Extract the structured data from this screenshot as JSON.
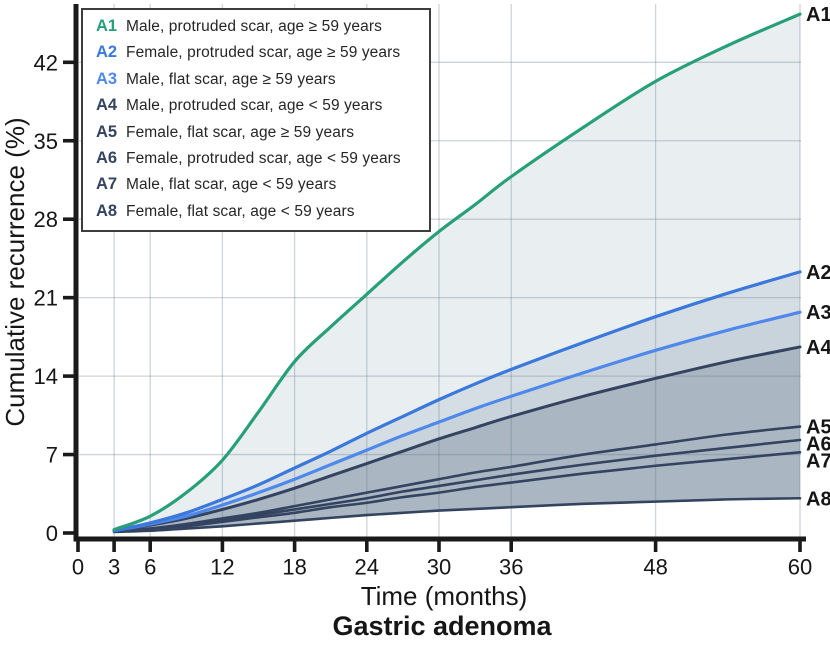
{
  "title": "Gastric adenoma",
  "colors": {
    "background": "#ffffff",
    "axis": "#1a1a1a",
    "grid": "#64798c",
    "legend_border": "#3d3d3d"
  },
  "legend": {
    "items": [
      {
        "code": "A1",
        "color": "#27a077",
        "text": "Male, protruded scar, age ≥ 59 years"
      },
      {
        "code": "A2",
        "color": "#3a78dc",
        "text": "Female, protruded scar, age ≥ 59 years"
      },
      {
        "code": "A3",
        "color": "#4d88ea",
        "text": "Male, flat scar, age ≥ 59 years"
      },
      {
        "code": "A4",
        "color": "#344460",
        "text": "Male, protruded scar, age < 59 years"
      },
      {
        "code": "A5",
        "color": "#344460",
        "text": "Female, flat scar, age ≥ 59 years"
      },
      {
        "code": "A6",
        "color": "#344460",
        "text": "Female, protruded scar, age < 59 years"
      },
      {
        "code": "A7",
        "color": "#344460",
        "text": "Male, flat scar, age < 59 years"
      },
      {
        "code": "A8",
        "color": "#344460",
        "text": "Female, flat scar, age < 59 years"
      }
    ]
  },
  "chart_data": {
    "type": "line",
    "title": "Gastric adenoma",
    "xlabel": "Time (months)",
    "ylabel": "Cumulative recurrence (%)",
    "xlim": [
      0,
      60
    ],
    "ylim": [
      0,
      47
    ],
    "grid": true,
    "legend_position": "top-left",
    "x_ticks": [
      0,
      3,
      6,
      12,
      18,
      24,
      30,
      36,
      48,
      60
    ],
    "y_ticks": [
      0,
      7,
      14,
      21,
      28,
      35,
      42
    ],
    "x": [
      3,
      6,
      9,
      12,
      15,
      18,
      21,
      24,
      27,
      30,
      33,
      36,
      42,
      48,
      54,
      60
    ],
    "series": [
      {
        "id": "A1",
        "label": "A1",
        "color": "#27a077",
        "width": 3.2,
        "desc": "Male, protruded scar, age ≥ 59 years",
        "values": [
          0.3,
          1.5,
          3.6,
          6.5,
          10.8,
          15.3,
          18.4,
          21.3,
          24.2,
          26.9,
          29.3,
          31.8,
          36.2,
          40.3,
          43.5,
          46.3
        ]
      },
      {
        "id": "A2",
        "label": "A2",
        "color": "#3a78dc",
        "width": 3.2,
        "desc": "Female, protruded scar, age ≥ 59 years",
        "values": [
          0.2,
          0.9,
          1.8,
          3.0,
          4.3,
          5.8,
          7.3,
          8.9,
          10.4,
          11.9,
          13.3,
          14.6,
          17.0,
          19.3,
          21.4,
          23.3
        ]
      },
      {
        "id": "A3",
        "label": "A3",
        "color": "#4d88ea",
        "width": 3.2,
        "desc": "Male, flat scar, age ≥ 59 years",
        "values": [
          0.2,
          0.8,
          1.5,
          2.5,
          3.6,
          4.8,
          6.1,
          7.4,
          8.7,
          9.9,
          11.1,
          12.2,
          14.3,
          16.3,
          18.1,
          19.7
        ]
      },
      {
        "id": "A4",
        "label": "A4",
        "color": "#344460",
        "width": 3.0,
        "desc": "Male, protruded scar, age < 59 years",
        "values": [
          0.2,
          0.7,
          1.3,
          2.1,
          3.0,
          4.0,
          5.1,
          6.2,
          7.3,
          8.4,
          9.4,
          10.4,
          12.2,
          13.8,
          15.3,
          16.6
        ]
      },
      {
        "id": "A5",
        "label": "A5",
        "color": "#344460",
        "width": 2.6,
        "desc": "Female, flat scar, age ≥ 59 years",
        "values": [
          0.1,
          0.4,
          0.8,
          1.3,
          1.8,
          2.4,
          3.0,
          3.6,
          4.2,
          4.8,
          5.4,
          5.9,
          7.0,
          7.9,
          8.8,
          9.5
        ]
      },
      {
        "id": "A6",
        "label": "A6",
        "color": "#344460",
        "width": 2.6,
        "desc": "Female, protruded scar, age < 59 years",
        "values": [
          0.1,
          0.4,
          0.7,
          1.1,
          1.6,
          2.1,
          2.6,
          3.1,
          3.7,
          4.2,
          4.7,
          5.2,
          6.1,
          6.9,
          7.6,
          8.3
        ]
      },
      {
        "id": "A7",
        "label": "A7",
        "color": "#344460",
        "width": 2.6,
        "desc": "Male, flat scar, age < 59 years",
        "values": [
          0.1,
          0.3,
          0.6,
          1.0,
          1.4,
          1.8,
          2.3,
          2.7,
          3.2,
          3.6,
          4.1,
          4.5,
          5.3,
          6.0,
          6.6,
          7.2
        ]
      },
      {
        "id": "A8",
        "label": "A8",
        "color": "#344460",
        "width": 2.6,
        "desc": "Female, flat scar, age < 59 years",
        "values": [
          0.1,
          0.2,
          0.4,
          0.6,
          0.85,
          1.1,
          1.35,
          1.6,
          1.8,
          2.0,
          2.15,
          2.3,
          2.6,
          2.8,
          3.0,
          3.1
        ]
      }
    ],
    "bands": [
      {
        "between": [
          "A1",
          "A2"
        ],
        "color": "#e9eef1"
      },
      {
        "between": [
          "A2",
          "A3"
        ],
        "color": "#d6dee5"
      },
      {
        "between": [
          "A3",
          "A4"
        ],
        "color": "#c9d3dc"
      },
      {
        "between": [
          "A4",
          "A8"
        ],
        "color": "#aab6c2"
      }
    ]
  }
}
